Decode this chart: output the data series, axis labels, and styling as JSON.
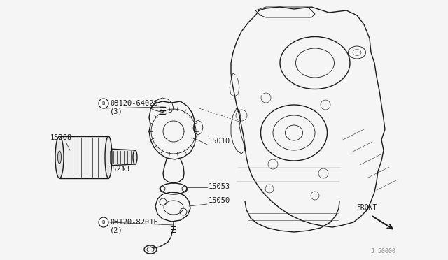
{
  "bg_color": "#f5f5f5",
  "line_color": "#1a1a1a",
  "fig_width": 6.4,
  "fig_height": 3.72,
  "dpi": 100,
  "watermark": "J 50000",
  "front_label": "FRONT",
  "label_15208": "15208",
  "label_15213": "15213",
  "label_15010": "15010",
  "label_15053": "15053",
  "label_15050": "15050",
  "bolt1_label": "08120-64028",
  "bolt1_qty": "(3)",
  "bolt2_label": "08120-8201E",
  "bolt2_qty": "(2)"
}
